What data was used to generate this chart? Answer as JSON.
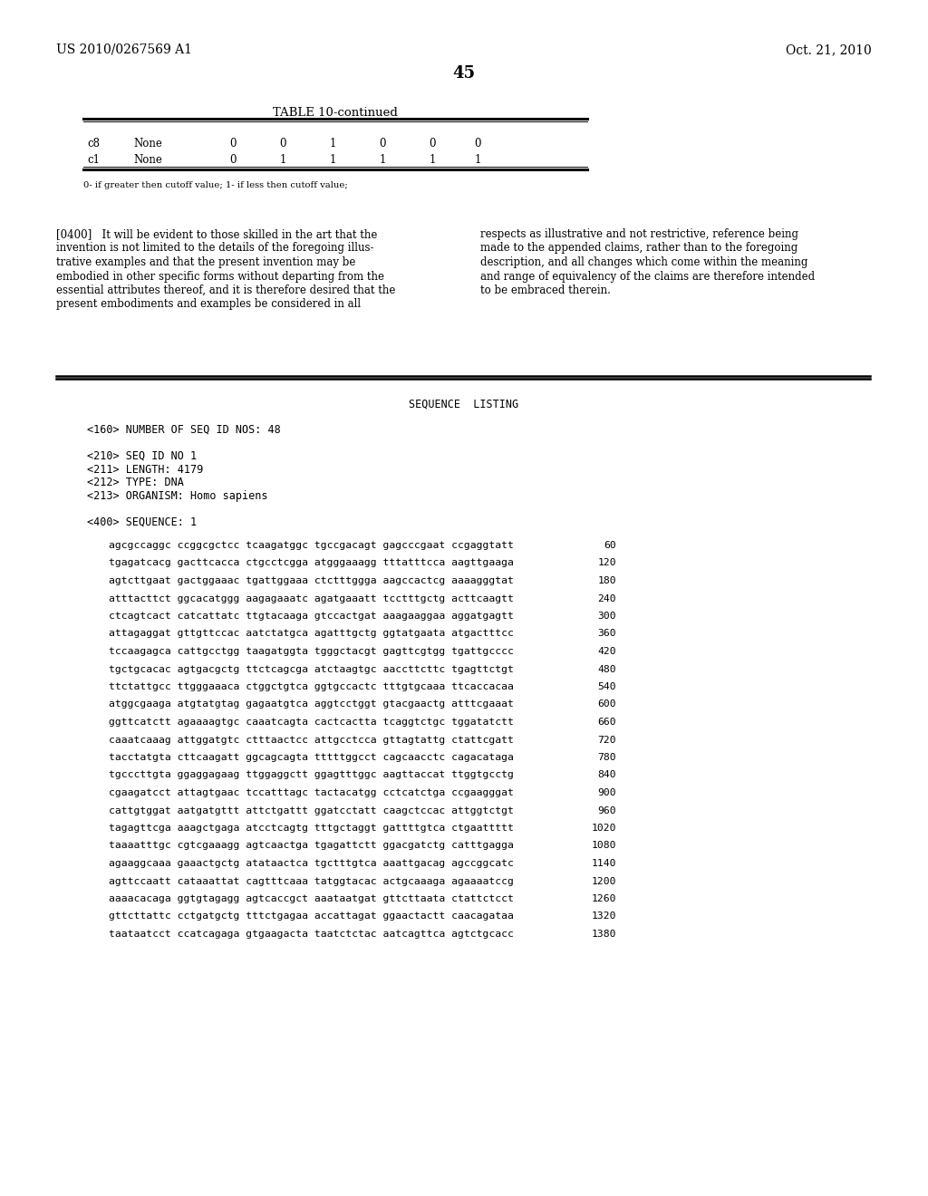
{
  "header_left": "US 2010/0267569 A1",
  "header_right": "Oct. 21, 2010",
  "page_number": "45",
  "table_title": "TABLE 10-continued",
  "table_rows": [
    [
      "c8",
      "None",
      "0",
      "0",
      "1",
      "0",
      "0",
      "0"
    ],
    [
      "c1",
      "None",
      "0",
      "1",
      "1",
      "1",
      "1",
      "1"
    ]
  ],
  "table_note": "0- if greater then cutoff value; 1- if less then cutoff value;",
  "left_para_lines": [
    "[0400]   It will be evident to those skilled in the art that the",
    "invention is not limited to the details of the foregoing illus-",
    "trative examples and that the present invention may be",
    "embodied in other specific forms without departing from the",
    "essential attributes thereof, and it is therefore desired that the",
    "present embodiments and examples be considered in all"
  ],
  "right_para_lines": [
    "respects as illustrative and not restrictive, reference being",
    "made to the appended claims, rather than to the foregoing",
    "description, and all changes which come within the meaning",
    "and range of equivalency of the claims are therefore intended",
    "to be embraced therein."
  ],
  "seq_listing_title": "SEQUENCE  LISTING",
  "seq_meta_lines": [
    "<160> NUMBER OF SEQ ID NOS: 48",
    "",
    "<210> SEQ ID NO 1",
    "<211> LENGTH: 4179",
    "<212> TYPE: DNA",
    "<213> ORGANISM: Homo sapiens",
    "",
    "<400> SEQUENCE: 1"
  ],
  "dna_lines": [
    [
      "agcgccaggc ccggcgctcc tcaagatggc tgccgacagt gagcccgaat ccgaggtatt",
      "60"
    ],
    [
      "tgagatcacg gacttcacca ctgcctcgga atgggaaagg tttatttcca aagttgaaga",
      "120"
    ],
    [
      "agtcttgaat gactggaaac tgattggaaa ctctttggga aagccactcg aaaagggtat",
      "180"
    ],
    [
      "atttacttct ggcacatggg aagagaaatc agatgaaatt tcctttgctg acttcaagtt",
      "240"
    ],
    [
      "ctcagtcact catcattatc ttgtacaaga gtccactgat aaagaaggaa aggatgagtt",
      "300"
    ],
    [
      "attagaggat gttgttccac aatctatgca agatttgctg ggtatgaata atgactttcc",
      "360"
    ],
    [
      "tccaagagca cattgcctgg taagatggta tgggctacgt gagttcgtgg tgattgcccc",
      "420"
    ],
    [
      "tgctgcacac agtgacgctg ttctcagcga atctaagtgc aaccttcttc tgagttctgt",
      "480"
    ],
    [
      "ttctattgcc ttgggaaaca ctggctgtca ggtgccactc tttgtgcaaa ttcaccacaa",
      "540"
    ],
    [
      "atggcgaaga atgtatgtag gagaatgtca aggtcctggt gtacgaactg atttcgaaat",
      "600"
    ],
    [
      "ggttcatctt agaaaagtgc caaatcagta cactcactta tcaggtctgc tggatatctt",
      "660"
    ],
    [
      "caaatcaaag attggatgtc ctttaactcc attgcctcca gttagtattg ctattcgatt",
      "720"
    ],
    [
      "tacctatgta cttcaagatt ggcagcagta tttttggcct cagcaacctc cagacataga",
      "780"
    ],
    [
      "tgcccttgta ggaggagaag ttggaggctt ggagtttggc aagttaccat ttggtgcctg",
      "840"
    ],
    [
      "cgaagatcct attagtgaac tccatttagc tactacatgg cctcatctga ccgaagggat",
      "900"
    ],
    [
      "cattgtggat aatgatgttt attctgattt ggatcctatt caagctccac attggtctgt",
      "960"
    ],
    [
      "tagagttcga aaagctgaga atcctcagtg tttgctaggt gattttgtca ctgaattttt",
      "1020"
    ],
    [
      "taaaatttgc cgtcgaaagg agtcaactga tgagattctt ggacgatctg catttgagga",
      "1080"
    ],
    [
      "agaaggcaaa gaaactgctg atataactca tgctttgtca aaattgacag agccggcatc",
      "1140"
    ],
    [
      "agttccaatt cataaattat cagtttcaaa tatggtacac actgcaaaga agaaaatccg",
      "1200"
    ],
    [
      "aaaacacaga ggtgtagagg agtcaccgct aaataatgat gttcttaata ctattctcct",
      "1260"
    ],
    [
      "gttcttattc cctgatgctg tttctgagaa accattagat ggaactactt caacagataa",
      "1320"
    ],
    [
      "taataatcct ccatcagaga gtgaagacta taatctctac aatcagttca agtctgcacc",
      "1380"
    ]
  ]
}
